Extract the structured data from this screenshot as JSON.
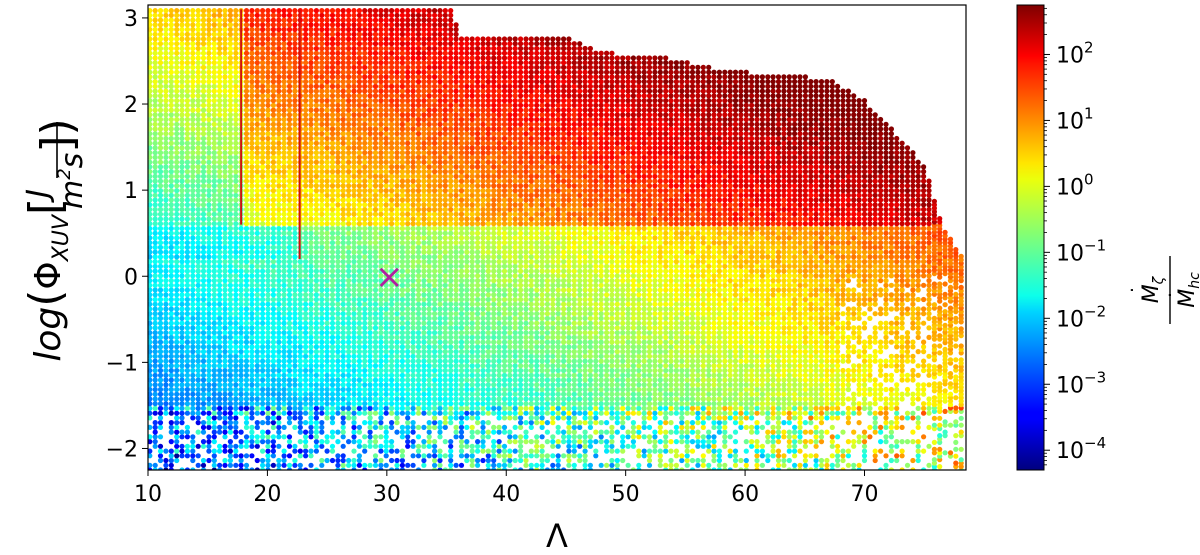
{
  "chart_data": {
    "type": "scatter",
    "xlabel": "Λ",
    "ylabel": "log(Φ_XUV [J / m²s])",
    "ylabel_parts": {
      "log": "log",
      "phi": "Φ",
      "phi_sub": "XUV",
      "num": "J",
      "den_m": "m",
      "den_exp": "2",
      "den_s": "s"
    },
    "xlim": [
      10,
      78.5
    ],
    "ylim": [
      -2.25,
      3.15
    ],
    "x_ticks": [
      10,
      20,
      30,
      40,
      50,
      60,
      70
    ],
    "y_ticks": [
      -2,
      -1,
      0,
      1,
      2,
      3
    ],
    "colorbar": {
      "label": "Ṁ_ζ / Ṁ_hc",
      "label_parts": {
        "num": "M",
        "num_sub": "ζ",
        "den": "M",
        "den_sub": "hc"
      },
      "scale": "log",
      "range_log10": [
        -4.3,
        2.75
      ],
      "colormap": "jet",
      "ticks": [
        {
          "base": "10",
          "exp": "2",
          "log": 2
        },
        {
          "base": "10",
          "exp": "1",
          "log": 1
        },
        {
          "base": "10",
          "exp": "0",
          "log": 0
        },
        {
          "base": "10",
          "exp": "−1",
          "log": -1
        },
        {
          "base": "10",
          "exp": "−2",
          "log": -2
        },
        {
          "base": "10",
          "exp": "−3",
          "log": -3
        },
        {
          "base": "10",
          "exp": "−4",
          "log": -4
        }
      ]
    },
    "parameter_grid": {
      "x_step": 0.45,
      "upper_boundary": [
        {
          "x": 10,
          "y": 3.1
        },
        {
          "x": 35.6,
          "y": 3.1
        },
        {
          "x": 36,
          "y": 2.8
        },
        {
          "x": 45,
          "y": 2.8
        },
        {
          "x": 48,
          "y": 2.6
        },
        {
          "x": 53,
          "y": 2.55
        },
        {
          "x": 58,
          "y": 2.4
        },
        {
          "x": 62,
          "y": 2.35
        },
        {
          "x": 67,
          "y": 2.3
        },
        {
          "x": 70,
          "y": 2.05
        },
        {
          "x": 73,
          "y": 1.6
        },
        {
          "x": 75,
          "y": 1.3
        },
        {
          "x": 76.5,
          "y": 0.6
        },
        {
          "x": 78.3,
          "y": 0.2
        }
      ],
      "region_boundaries": [
        {
          "x": 17.8,
          "y": 0.6
        },
        {
          "x": 22.7,
          "y": 0.2
        }
      ],
      "lower_limit": -2.25
    },
    "markers": [
      {
        "label": "×",
        "x": 30.2,
        "y": -0.02,
        "color": "#b0209e"
      }
    ]
  }
}
